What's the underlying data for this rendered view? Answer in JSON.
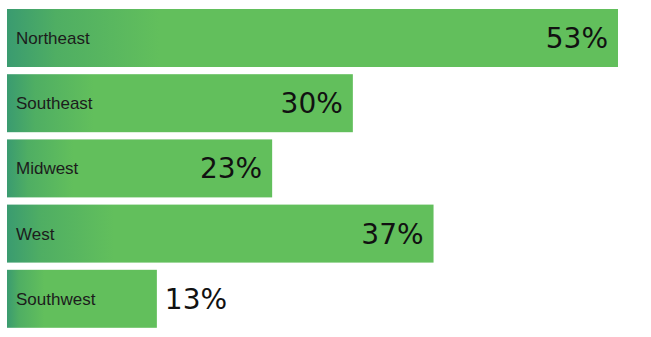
{
  "chart_data": {
    "type": "bar",
    "orientation": "horizontal",
    "categories": [
      "Northeast",
      "Southeast",
      "Midwest",
      "West",
      "Southwest"
    ],
    "values": [
      53,
      30,
      23,
      37,
      13
    ],
    "value_labels": [
      "53%",
      "30%",
      "23%",
      "37%",
      "13%"
    ],
    "color": "#62bf5c",
    "data_labels": true,
    "tick_labels": false,
    "grid": false
  }
}
